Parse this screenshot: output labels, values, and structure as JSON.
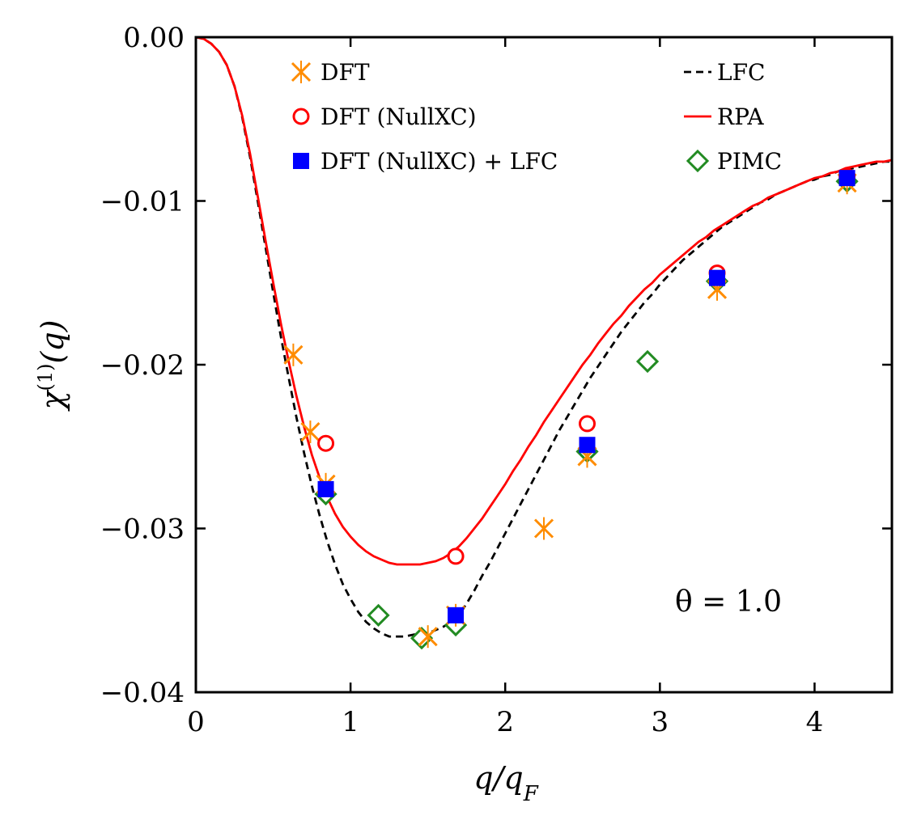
{
  "chart_data": {
    "type": "line",
    "xlabel": "q/q_F",
    "ylabel": "χ^(1)(q)",
    "xlim": [
      0,
      4.5
    ],
    "ylim": [
      -0.04,
      0.0
    ],
    "xticks": [
      0,
      1,
      2,
      3,
      4
    ],
    "yticks": [
      0.0,
      -0.01,
      -0.02,
      -0.03,
      -0.04
    ],
    "xtick_labels": [
      "0",
      "1",
      "2",
      "3",
      "4"
    ],
    "ytick_labels": [
      "0.00",
      "−0.01",
      "−0.02",
      "−0.03",
      "−0.04"
    ],
    "annotation": "θ = 1.0",
    "series": [
      {
        "name": "LFC",
        "legend": "LFC",
        "kind": "line",
        "style": "dashed",
        "color": "#000000",
        "x": [
          0,
          0.05,
          0.1,
          0.15,
          0.2,
          0.25,
          0.3,
          0.35,
          0.4,
          0.45,
          0.5,
          0.55,
          0.6,
          0.65,
          0.7,
          0.75,
          0.8,
          0.85,
          0.9,
          0.95,
          1.0,
          1.05,
          1.1,
          1.15,
          1.2,
          1.25,
          1.3,
          1.35,
          1.4,
          1.45,
          1.5,
          1.55,
          1.6,
          1.65,
          1.7,
          1.75,
          1.8,
          1.85,
          1.9,
          1.95,
          2.0,
          2.05,
          2.1,
          2.15,
          2.2,
          2.25,
          2.3,
          2.35,
          2.4,
          2.45,
          2.5,
          2.55,
          2.6,
          2.65,
          2.7,
          2.75,
          2.8,
          2.85,
          2.9,
          2.95,
          3.0,
          3.05,
          3.1,
          3.15,
          3.2,
          3.25,
          3.3,
          3.35,
          3.4,
          3.45,
          3.5,
          3.55,
          3.6,
          3.65,
          3.7,
          3.75,
          3.8,
          3.85,
          3.9,
          3.95,
          4.0,
          4.05,
          4.1,
          4.15,
          4.2,
          4.25,
          4.3,
          4.35,
          4.4,
          4.45,
          4.5
        ],
        "y": [
          0,
          -0.0001,
          -0.0004,
          -0.0009,
          -0.0017,
          -0.003,
          -0.0049,
          -0.0073,
          -0.01,
          -0.0128,
          -0.0156,
          -0.0183,
          -0.0208,
          -0.0232,
          -0.0254,
          -0.0274,
          -0.0292,
          -0.0308,
          -0.0322,
          -0.0334,
          -0.0343,
          -0.0351,
          -0.0357,
          -0.0361,
          -0.0364,
          -0.0366,
          -0.0366,
          -0.0366,
          -0.0365,
          -0.0364,
          -0.0364,
          -0.0362,
          -0.036,
          -0.0357,
          -0.0353,
          -0.0346,
          -0.0338,
          -0.0329,
          -0.0321,
          -0.0312,
          -0.0303,
          -0.0294,
          -0.0285,
          -0.0276,
          -0.0267,
          -0.0258,
          -0.0249,
          -0.024,
          -0.0232,
          -0.0224,
          -0.0216,
          -0.0208,
          -0.0201,
          -0.0194,
          -0.0187,
          -0.018,
          -0.0174,
          -0.0168,
          -0.0162,
          -0.0157,
          -0.0151,
          -0.0146,
          -0.0141,
          -0.0136,
          -0.0132,
          -0.0128,
          -0.0124,
          -0.012,
          -0.0116,
          -0.0113,
          -0.011,
          -0.0107,
          -0.0104,
          -0.0101,
          -0.0099,
          -0.0096,
          -0.0094,
          -0.0092,
          -0.009,
          -0.0088,
          -0.0087,
          -0.0085,
          -0.0084,
          -0.0082,
          -0.0081,
          -0.008,
          -0.0079,
          -0.0078,
          -0.0077,
          -0.0076,
          -0.0076
        ]
      },
      {
        "name": "RPA",
        "legend": "RPA",
        "kind": "line",
        "style": "solid",
        "color": "#ff0000",
        "x": [
          0,
          0.05,
          0.1,
          0.15,
          0.2,
          0.25,
          0.3,
          0.35,
          0.4,
          0.45,
          0.5,
          0.55,
          0.6,
          0.65,
          0.7,
          0.75,
          0.8,
          0.85,
          0.9,
          0.95,
          1.0,
          1.05,
          1.1,
          1.15,
          1.2,
          1.25,
          1.3,
          1.35,
          1.4,
          1.45,
          1.5,
          1.55,
          1.6,
          1.65,
          1.7,
          1.75,
          1.8,
          1.85,
          1.9,
          1.95,
          2.0,
          2.05,
          2.1,
          2.15,
          2.2,
          2.25,
          2.3,
          2.35,
          2.4,
          2.45,
          2.5,
          2.55,
          2.6,
          2.65,
          2.7,
          2.75,
          2.8,
          2.85,
          2.9,
          2.95,
          3.0,
          3.05,
          3.1,
          3.15,
          3.2,
          3.25,
          3.3,
          3.35,
          3.4,
          3.45,
          3.5,
          3.55,
          3.6,
          3.65,
          3.7,
          3.75,
          3.8,
          3.85,
          3.9,
          3.95,
          4.0,
          4.05,
          4.1,
          4.15,
          4.2,
          4.25,
          4.3,
          4.35,
          4.4,
          4.45,
          4.5
        ],
        "y": [
          0,
          -0.0001,
          -0.0004,
          -0.0009,
          -0.0017,
          -0.003,
          -0.0048,
          -0.0071,
          -0.0097,
          -0.0124,
          -0.015,
          -0.0175,
          -0.0198,
          -0.0219,
          -0.0238,
          -0.0255,
          -0.0269,
          -0.0281,
          -0.0291,
          -0.0299,
          -0.0305,
          -0.031,
          -0.0314,
          -0.0317,
          -0.0319,
          -0.0321,
          -0.0322,
          -0.0322,
          -0.0322,
          -0.0322,
          -0.0321,
          -0.032,
          -0.0318,
          -0.0315,
          -0.0311,
          -0.0306,
          -0.03,
          -0.0294,
          -0.0287,
          -0.028,
          -0.0273,
          -0.0265,
          -0.0258,
          -0.025,
          -0.0243,
          -0.0235,
          -0.0228,
          -0.0221,
          -0.0214,
          -0.0207,
          -0.02,
          -0.0194,
          -0.0187,
          -0.0181,
          -0.0175,
          -0.017,
          -0.0164,
          -0.0159,
          -0.0154,
          -0.015,
          -0.0145,
          -0.0141,
          -0.0137,
          -0.0133,
          -0.0129,
          -0.0125,
          -0.0122,
          -0.0118,
          -0.0115,
          -0.0112,
          -0.0109,
          -0.0106,
          -0.0103,
          -0.0101,
          -0.0098,
          -0.0096,
          -0.0094,
          -0.0092,
          -0.009,
          -0.0088,
          -0.0086,
          -0.0085,
          -0.0083,
          -0.0082,
          -0.008,
          -0.0079,
          -0.0078,
          -0.0077,
          -0.0076,
          -0.0076,
          -0.0075
        ]
      },
      {
        "name": "DFT",
        "legend": "DFT",
        "kind": "markers",
        "marker": "x",
        "color": "#ff8c00",
        "x": [
          0.63,
          0.74,
          0.84,
          1.5,
          1.68,
          2.25,
          2.53,
          3.37,
          4.21
        ],
        "y": [
          -0.0194,
          -0.0241,
          -0.0273,
          -0.0366,
          -0.0353,
          -0.03,
          -0.0256,
          -0.0154,
          -0.0089
        ]
      },
      {
        "name": "DFT (NullXC)",
        "legend": "DFT (NullXC)",
        "kind": "markers",
        "marker": "circle-open",
        "color": "#ff0000",
        "x": [
          0.84,
          1.68,
          2.53,
          3.37,
          4.21
        ],
        "y": [
          -0.0248,
          -0.0317,
          -0.0236,
          -0.0144,
          -0.0085
        ]
      },
      {
        "name": "DFT (NullXC) + LFC",
        "legend": "DFT (NullXC) + LFC",
        "kind": "markers",
        "marker": "square",
        "color": "#0000ff",
        "x": [
          0.84,
          1.68,
          2.53,
          3.37,
          4.21
        ],
        "y": [
          -0.0276,
          -0.0353,
          -0.0249,
          -0.0147,
          -0.0086
        ]
      },
      {
        "name": "PIMC",
        "legend": "PIMC",
        "kind": "markers",
        "marker": "diamond-open",
        "color": "#228b22",
        "x": [
          0.84,
          1.18,
          1.46,
          1.68,
          2.53,
          2.92,
          3.37,
          4.21
        ],
        "y": [
          -0.0279,
          -0.0353,
          -0.0367,
          -0.0359,
          -0.0253,
          -0.0198,
          -0.0149,
          -0.0088
        ]
      }
    ]
  }
}
